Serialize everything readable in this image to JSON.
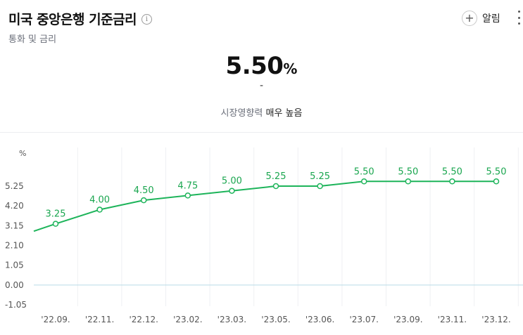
{
  "header": {
    "title": "미국 중앙은행 기준금리",
    "info_icon": "info-icon",
    "subtitle": "통화 및 금리",
    "alarm_label": "알림",
    "alarm_icon": "plus-icon",
    "more_icon": "more-vertical-icon"
  },
  "summary": {
    "value": "5.50",
    "unit": "%",
    "change": "-",
    "influence_label": "시장영향력",
    "influence_level": "매우 높음"
  },
  "colors": {
    "line": "#1db45a",
    "label": "#1aa64f",
    "axis_text": "#555555",
    "grid": "#eef0f3"
  },
  "chart_data": {
    "type": "line",
    "y_unit_label": "%",
    "ylim": [
      -1.05,
      5.6
    ],
    "y_ticks": [
      "5.25",
      "4.20",
      "3.15",
      "2.10",
      "1.05",
      "0.00",
      "-1.05"
    ],
    "y_tick_values": [
      5.25,
      4.2,
      3.15,
      2.1,
      1.05,
      0.0,
      -1.05
    ],
    "categories": [
      "'22.09.",
      "'22.11.",
      "'22.12.",
      "'23.02.",
      "'23.03.",
      "'23.05.",
      "'23.06.",
      "'23.07.",
      "'23.09.",
      "'23.11.",
      "'23.12."
    ],
    "series": [
      {
        "values": [
          3.25,
          4.0,
          4.5,
          4.75,
          5.0,
          5.25,
          5.25,
          5.5,
          5.5,
          5.5,
          5.5
        ],
        "labels": [
          "3.25",
          "4.00",
          "4.50",
          "4.75",
          "5.00",
          "5.25",
          "5.25",
          "5.50",
          "5.50",
          "5.50",
          "5.50"
        ]
      }
    ],
    "grid": "vertical",
    "zero_line": true
  }
}
